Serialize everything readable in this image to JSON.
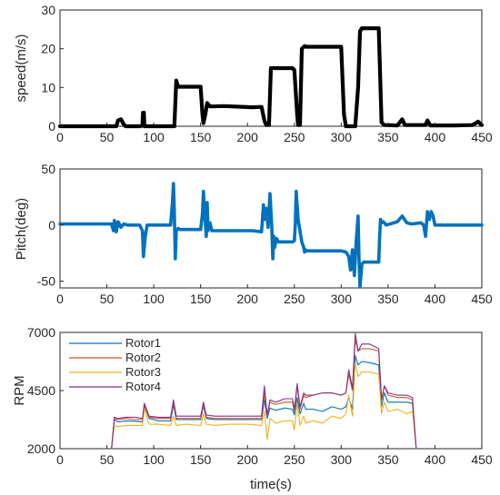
{
  "chart_data": [
    {
      "type": "line",
      "title": "",
      "xlabel": "",
      "ylabel": "speed(m/s)",
      "xlim": [
        0,
        450
      ],
      "ylim": [
        0,
        30
      ],
      "xticks": [
        0,
        50,
        100,
        150,
        200,
        250,
        300,
        350,
        400,
        450
      ],
      "yticks": [
        0,
        10,
        20,
        30
      ],
      "grid": false,
      "series": [
        {
          "color": "#000000",
          "x": [
            0,
            60,
            62,
            65,
            68,
            70,
            86,
            88,
            88.5,
            89.5,
            90,
            122,
            124,
            126,
            150,
            152,
            153,
            155,
            157,
            160,
            175,
            205,
            215,
            218,
            220,
            223,
            225,
            248,
            250,
            253,
            254,
            256,
            258,
            261,
            263,
            300,
            303,
            305,
            315,
            318,
            320,
            322,
            340,
            343,
            346,
            360,
            365,
            368,
            390,
            392,
            395,
            420,
            440,
            446,
            450
          ],
          "y": [
            0,
            0,
            1.5,
            1.8,
            0.5,
            0,
            0,
            0.3,
            3.5,
            3.5,
            0,
            0,
            11.8,
            10.2,
            10.2,
            3,
            0.8,
            3,
            6,
            5.1,
            5.2,
            4.9,
            5,
            1.5,
            0.3,
            0.3,
            15,
            15,
            14.5,
            3,
            0.3,
            0.3,
            20,
            20.7,
            20.5,
            20.5,
            3,
            0,
            0,
            10,
            24.5,
            25.3,
            25.3,
            1,
            0.3,
            0.2,
            1.8,
            0.3,
            0.3,
            1.5,
            0.2,
            0.2,
            0.3,
            1.2,
            0.3
          ]
        }
      ]
    },
    {
      "type": "line",
      "title": "",
      "xlabel": "",
      "ylabel": "Pitch(deg)",
      "xlim": [
        0,
        450
      ],
      "ylim": [
        -56,
        50
      ],
      "xticks": [
        0,
        50,
        100,
        150,
        200,
        250,
        300,
        350,
        400,
        450
      ],
      "yticks": [
        -50,
        0,
        50
      ],
      "grid": false,
      "series": [
        {
          "color": "#0072BD",
          "x": [
            0,
            55,
            57,
            58,
            60,
            62,
            65,
            68,
            72,
            85,
            88,
            89,
            91,
            93,
            105,
            118,
            120,
            121,
            122,
            123,
            124,
            126,
            128,
            150,
            152,
            153,
            154,
            156,
            157,
            158,
            160,
            162,
            175,
            205,
            215,
            217,
            218,
            220,
            222,
            224,
            226,
            227,
            228,
            229,
            230,
            231,
            233,
            248,
            250,
            251,
            252,
            254,
            258,
            260,
            261,
            262,
            263,
            265,
            300,
            305,
            308,
            310,
            312,
            314,
            316,
            318,
            319,
            320,
            322,
            324,
            340,
            341,
            342,
            343,
            345,
            348,
            360,
            365,
            370,
            375,
            385,
            388,
            390,
            392,
            394,
            396,
            398,
            400,
            420,
            450
          ],
          "y": [
            1,
            1,
            -5,
            4,
            -6,
            3,
            -2,
            1,
            0,
            0,
            -5,
            -28,
            -10,
            0,
            0,
            0,
            20,
            37,
            10,
            -30,
            -5,
            -3,
            -4,
            -4,
            10,
            30,
            15,
            -10,
            20,
            -5,
            2,
            -5,
            -5,
            -5,
            -6,
            18,
            5,
            15,
            -2,
            28,
            -2,
            -30,
            -10,
            -20,
            -15,
            -12,
            -15,
            -15,
            -14,
            0,
            30,
            5,
            -15,
            -20,
            -24,
            -22,
            -23,
            -23,
            -23,
            -24,
            -28,
            -40,
            -22,
            -45,
            -15,
            8,
            -30,
            -55,
            -35,
            -33,
            -33,
            -10,
            5,
            2,
            3,
            0,
            3,
            8,
            2,
            1,
            2,
            0,
            -10,
            12,
            5,
            12,
            8,
            0,
            0,
            0
          ]
        }
      ]
    },
    {
      "type": "line",
      "title": "",
      "xlabel": "time(s)",
      "ylabel": "RPM",
      "xlim": [
        0,
        450
      ],
      "ylim": [
        2000,
        7000
      ],
      "xticks": [
        0,
        50,
        100,
        150,
        200,
        250,
        300,
        350,
        400,
        450
      ],
      "yticks": [
        2000,
        4500,
        7000
      ],
      "grid": false,
      "legend": "top-left",
      "x": [
        55,
        58,
        62,
        70,
        80,
        88,
        90,
        95,
        105,
        118,
        121,
        124,
        135,
        150,
        153,
        156,
        165,
        180,
        200,
        215,
        218,
        221,
        224,
        230,
        240,
        248,
        250,
        253,
        256,
        260,
        262,
        270,
        280,
        290,
        300,
        305,
        308,
        312,
        315,
        318,
        322,
        330,
        340,
        343,
        346,
        350,
        360,
        370,
        376,
        380
      ],
      "series": [
        {
          "name": "Rotor1",
          "color": "#0072BD",
          "values": [
            2000,
            3250,
            3150,
            3200,
            3180,
            3150,
            3850,
            3300,
            3200,
            3200,
            3900,
            3250,
            3250,
            3250,
            3850,
            3300,
            3250,
            3250,
            3250,
            3250,
            4100,
            3300,
            3750,
            3650,
            3750,
            3700,
            3450,
            4200,
            3500,
            3950,
            3700,
            3700,
            3600,
            3800,
            3700,
            3800,
            4200,
            3700,
            6000,
            5600,
            5750,
            5700,
            5600,
            3800,
            4400,
            4000,
            4000,
            4000,
            3950,
            2000
          ]
        },
        {
          "name": "Rotor2",
          "color": "#D95319",
          "values": [
            2000,
            3300,
            3250,
            3300,
            3250,
            3250,
            3900,
            3350,
            3300,
            3300,
            4000,
            3300,
            3300,
            3300,
            3900,
            3350,
            3300,
            3300,
            3300,
            3300,
            4400,
            3400,
            4000,
            3900,
            4000,
            4000,
            3600,
            4700,
            3700,
            4300,
            4200,
            4300,
            4400,
            4400,
            4300,
            4400,
            5200,
            4500,
            6700,
            6200,
            6300,
            6300,
            6200,
            4100,
            4700,
            4300,
            4200,
            4200,
            4100,
            2000
          ]
        },
        {
          "name": "Rotor3",
          "color": "#EDB120",
          "values": [
            2000,
            3000,
            2950,
            3000,
            3000,
            3000,
            3700,
            3050,
            3050,
            3000,
            3400,
            3000,
            3050,
            3000,
            3500,
            3050,
            3000,
            3050,
            3050,
            3000,
            3600,
            2400,
            3300,
            3100,
            3200,
            3200,
            2800,
            4000,
            3000,
            3400,
            3100,
            3200,
            3100,
            3400,
            3300,
            3500,
            4300,
            3400,
            5700,
            5100,
            5300,
            5300,
            5200,
            3500,
            4000,
            3600,
            3700,
            3500,
            3600,
            2000
          ]
        },
        {
          "name": "Rotor4",
          "color": "#7E2F8E",
          "values": [
            2000,
            3350,
            3300,
            3350,
            3350,
            3300,
            3950,
            3400,
            3350,
            3350,
            4100,
            3400,
            3400,
            3400,
            4000,
            3450,
            3400,
            3400,
            3400,
            3400,
            4700,
            3450,
            4100,
            4000,
            4150,
            4150,
            3700,
            4800,
            3800,
            4400,
            4300,
            4300,
            4400,
            4400,
            4300,
            4400,
            5400,
            4600,
            6950,
            6200,
            6500,
            6500,
            6300,
            4100,
            4700,
            4400,
            4300,
            4300,
            4200,
            2000
          ]
        }
      ]
    }
  ]
}
